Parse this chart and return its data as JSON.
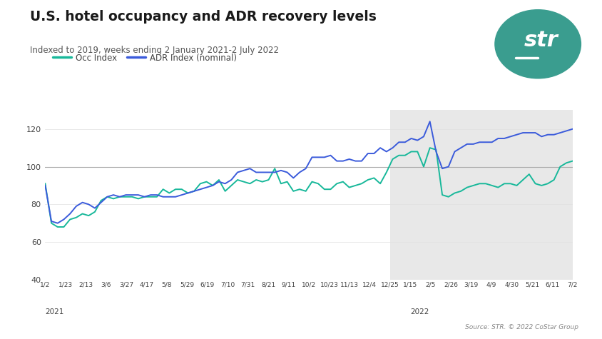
{
  "title": "U.S. hotel occupancy and ADR recovery levels",
  "subtitle": "Indexed to 2019, weeks ending 2 January 2021-2 July 2022",
  "source_text": "Source: STR. © 2022 CoStar Group",
  "background_color": "#ffffff",
  "plot_bg_color": "#ffffff",
  "shade_bg_color": "#e8e8e8",
  "occ_color": "#18b89a",
  "adr_color": "#3b5bdb",
  "legend_occ": "Occ Index",
  "legend_adr": "ADR Index (nominal)",
  "ylim": [
    40,
    130
  ],
  "yticks": [
    40,
    60,
    80,
    100,
    120
  ],
  "hline_y": 100,
  "x_labels_2021": [
    "1/2",
    "1/23",
    "2/13",
    "3/6",
    "3/27",
    "4/17",
    "5/8",
    "5/29",
    "6/19",
    "7/10",
    "7/31",
    "8/21",
    "9/11",
    "10/2",
    "10/23",
    "11/13",
    "12/4",
    "12/25"
  ],
  "x_labels_2022": [
    "1/15",
    "2/5",
    "2/26",
    "3/19",
    "4/9",
    "4/30",
    "5/21",
    "6/11",
    "7/2"
  ],
  "logo_color": "#3a9d8f",
  "occ_values": [
    91,
    70,
    68,
    68,
    72,
    73,
    75,
    74,
    76,
    82,
    84,
    83,
    84,
    84,
    84,
    83,
    84,
    84,
    84,
    88,
    86,
    88,
    88,
    86,
    87,
    91,
    92,
    90,
    93,
    87,
    90,
    93,
    92,
    91,
    93,
    92,
    93,
    99,
    91,
    92,
    87,
    88,
    87,
    92,
    91,
    88,
    88,
    91,
    92,
    89,
    90,
    91,
    93,
    94,
    91,
    97,
    104,
    106,
    106,
    108,
    108,
    100,
    110,
    109,
    85,
    84,
    86,
    87,
    89,
    90,
    91,
    91,
    90,
    89,
    91,
    91,
    90,
    93,
    96,
    91,
    90,
    91,
    93,
    100,
    102,
    103
  ],
  "adr_values": [
    90,
    71,
    70,
    72,
    75,
    79,
    81,
    80,
    78,
    81,
    84,
    85,
    84,
    85,
    85,
    85,
    84,
    85,
    85,
    84,
    84,
    84,
    85,
    86,
    87,
    88,
    89,
    90,
    92,
    91,
    93,
    97,
    98,
    99,
    97,
    97,
    97,
    97,
    98,
    97,
    94,
    97,
    99,
    105,
    105,
    105,
    106,
    103,
    103,
    104,
    103,
    103,
    107,
    107,
    110,
    108,
    110,
    113,
    113,
    115,
    114,
    116,
    124,
    108,
    99,
    100,
    108,
    110,
    112,
    112,
    113,
    113,
    113,
    115,
    115,
    116,
    117,
    118,
    118,
    118,
    116,
    117,
    117,
    118,
    119,
    120
  ]
}
